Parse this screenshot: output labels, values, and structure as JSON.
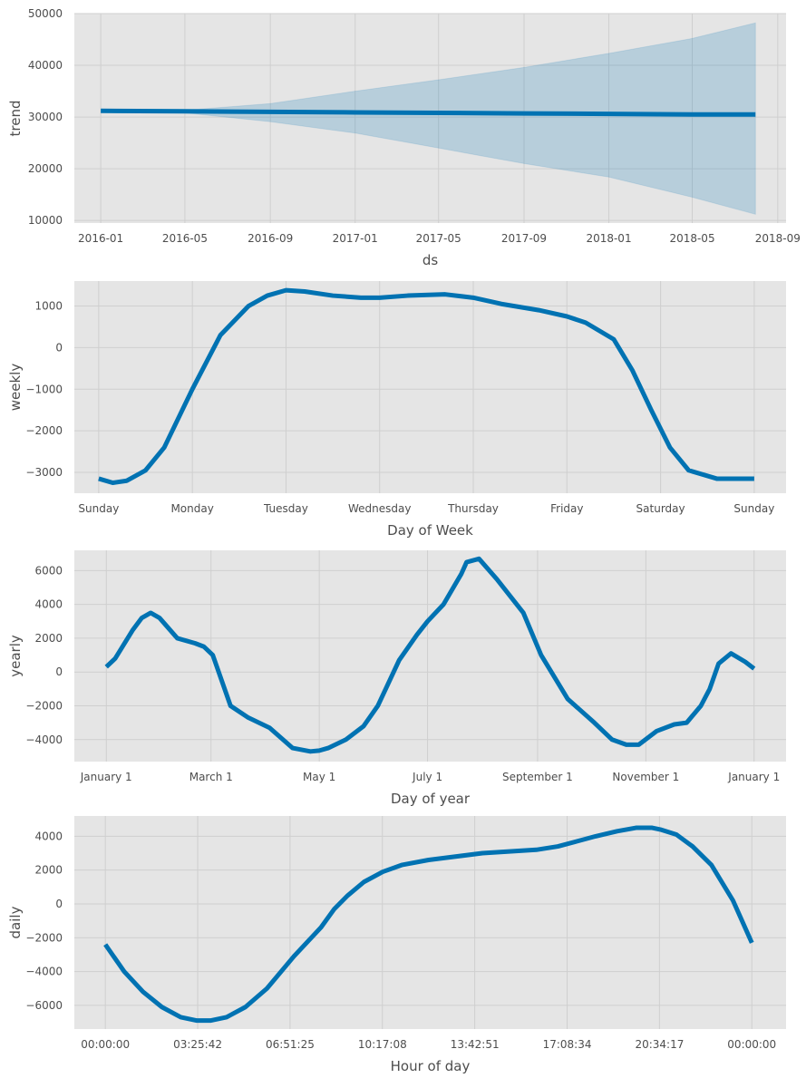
{
  "chart_data": [
    {
      "type": "line",
      "panel": "trend",
      "xlabel": "ds",
      "ylabel": "trend",
      "x_ticks": [
        "2016-01",
        "2016-05",
        "2016-09",
        "2017-01",
        "2017-05",
        "2017-09",
        "2018-01",
        "2018-05",
        "2018-09"
      ],
      "xlim": [
        "2015-11-24",
        "2018-09-13"
      ],
      "y_ticks": [
        10000,
        20000,
        30000,
        40000,
        50000
      ],
      "ylim": [
        9500,
        50000
      ],
      "grid": true,
      "series": [
        {
          "x": [
            "2016-01-01",
            "2016-05-01",
            "2016-09-01",
            "2017-01-01",
            "2017-05-01",
            "2017-09-01",
            "2018-01-01",
            "2018-05-01",
            "2018-07-31"
          ],
          "values": [
            31200,
            31100,
            31000,
            30900,
            30800,
            30700,
            30600,
            30500,
            30500
          ],
          "upper": [
            31200,
            31300,
            32600,
            35000,
            37200,
            39600,
            42300,
            45200,
            48200
          ],
          "lower": [
            31200,
            30800,
            29100,
            26900,
            24000,
            21000,
            18400,
            14500,
            11200
          ]
        }
      ]
    },
    {
      "type": "line",
      "panel": "weekly",
      "xlabel": "Day of Week",
      "ylabel": "weekly",
      "categories": [
        "Sunday",
        "Monday",
        "Tuesday",
        "Wednesday",
        "Thursday",
        "Friday",
        "Saturday",
        "Sunday"
      ],
      "xlim": [
        -0.26,
        7.34
      ],
      "y_ticks": [
        -3000,
        -2000,
        -1000,
        0,
        1000
      ],
      "ylim": [
        -3500,
        1600
      ],
      "grid": true,
      "series": [
        {
          "x": [
            0,
            0.15,
            0.3,
            0.5,
            0.7,
            1.0,
            1.3,
            1.6,
            1.8,
            2.0,
            2.2,
            2.5,
            2.8,
            3.0,
            3.3,
            3.7,
            4.0,
            4.3,
            4.7,
            5.0,
            5.2,
            5.5,
            5.7,
            5.9,
            6.1,
            6.3,
            6.6,
            6.9,
            7.0
          ],
          "values": [
            -3150,
            -3250,
            -3200,
            -2950,
            -2400,
            -1000,
            300,
            1000,
            1250,
            1380,
            1350,
            1250,
            1200,
            1200,
            1250,
            1280,
            1200,
            1050,
            900,
            750,
            600,
            200,
            -550,
            -1500,
            -2400,
            -2950,
            -3150,
            -3150,
            -3150
          ]
        }
      ]
    },
    {
      "type": "line",
      "panel": "yearly",
      "xlabel": "Day of year",
      "ylabel": "yearly",
      "categories": [
        "January 1",
        "March 1",
        "May 1",
        "July 1",
        "September 1",
        "November 1",
        "January 1"
      ],
      "category_days": [
        0,
        59,
        120,
        181,
        243,
        304,
        365
      ],
      "xlim": [
        -18,
        383
      ],
      "y_ticks": [
        -4000,
        -2000,
        0,
        2000,
        4000,
        6000
      ],
      "ylim": [
        -5300,
        7200
      ],
      "grid": true,
      "series": [
        {
          "x": [
            0,
            5,
            15,
            20,
            25,
            30,
            40,
            50,
            55,
            60,
            70,
            80,
            92,
            105,
            115,
            120,
            125,
            135,
            145,
            153,
            165,
            175,
            181,
            190,
            200,
            203,
            210,
            220,
            235,
            245,
            260,
            275,
            285,
            293,
            300,
            310,
            320,
            327,
            335,
            340,
            345,
            352,
            360,
            365
          ],
          "values": [
            300,
            800,
            2500,
            3200,
            3500,
            3200,
            2000,
            1700,
            1500,
            1000,
            -2000,
            -2700,
            -3300,
            -4500,
            -4700,
            -4650,
            -4500,
            -4000,
            -3200,
            -2000,
            700,
            2200,
            3000,
            4000,
            5800,
            6500,
            6700,
            5500,
            3500,
            1000,
            -1600,
            -3000,
            -4000,
            -4300,
            -4300,
            -3500,
            -3100,
            -3000,
            -2000,
            -1000,
            500,
            1100,
            600,
            200
          ]
        }
      ]
    },
    {
      "type": "line",
      "panel": "daily",
      "xlabel": "Hour of day",
      "ylabel": "daily",
      "categories": [
        "00:00:00",
        "03:25:42",
        "06:51:25",
        "10:17:08",
        "13:42:51",
        "17:08:34",
        "20:34:17",
        "00:00:00"
      ],
      "category_hours": [
        0,
        3.4286,
        6.8571,
        10.2857,
        13.7143,
        17.1429,
        20.5714,
        24
      ],
      "xlim": [
        -1.15,
        25.27
      ],
      "y_ticks": [
        -6000,
        -4000,
        -2000,
        0,
        2000,
        4000
      ],
      "ylim": [
        -7400,
        5200
      ],
      "grid": true,
      "series": [
        {
          "x": [
            0,
            0.7,
            1.4,
            2.1,
            2.8,
            3.4,
            3.9,
            4.5,
            5.2,
            6.0,
            7.0,
            8.0,
            8.5,
            9.0,
            9.6,
            10.3,
            11.0,
            12.0,
            13.0,
            14.0,
            15.0,
            16.0,
            16.8,
            17.5,
            18.2,
            19.0,
            19.7,
            20.3,
            20.6,
            21.2,
            21.8,
            22.5,
            23.3,
            24.0
          ],
          "values": [
            -2400,
            -4000,
            -5200,
            -6100,
            -6700,
            -6900,
            -6900,
            -6700,
            -6100,
            -5000,
            -3100,
            -1400,
            -300,
            500,
            1300,
            1900,
            2300,
            2600,
            2800,
            3000,
            3100,
            3200,
            3400,
            3700,
            4000,
            4300,
            4500,
            4500,
            4400,
            4100,
            3400,
            2300,
            200,
            -2300
          ]
        }
      ]
    }
  ]
}
